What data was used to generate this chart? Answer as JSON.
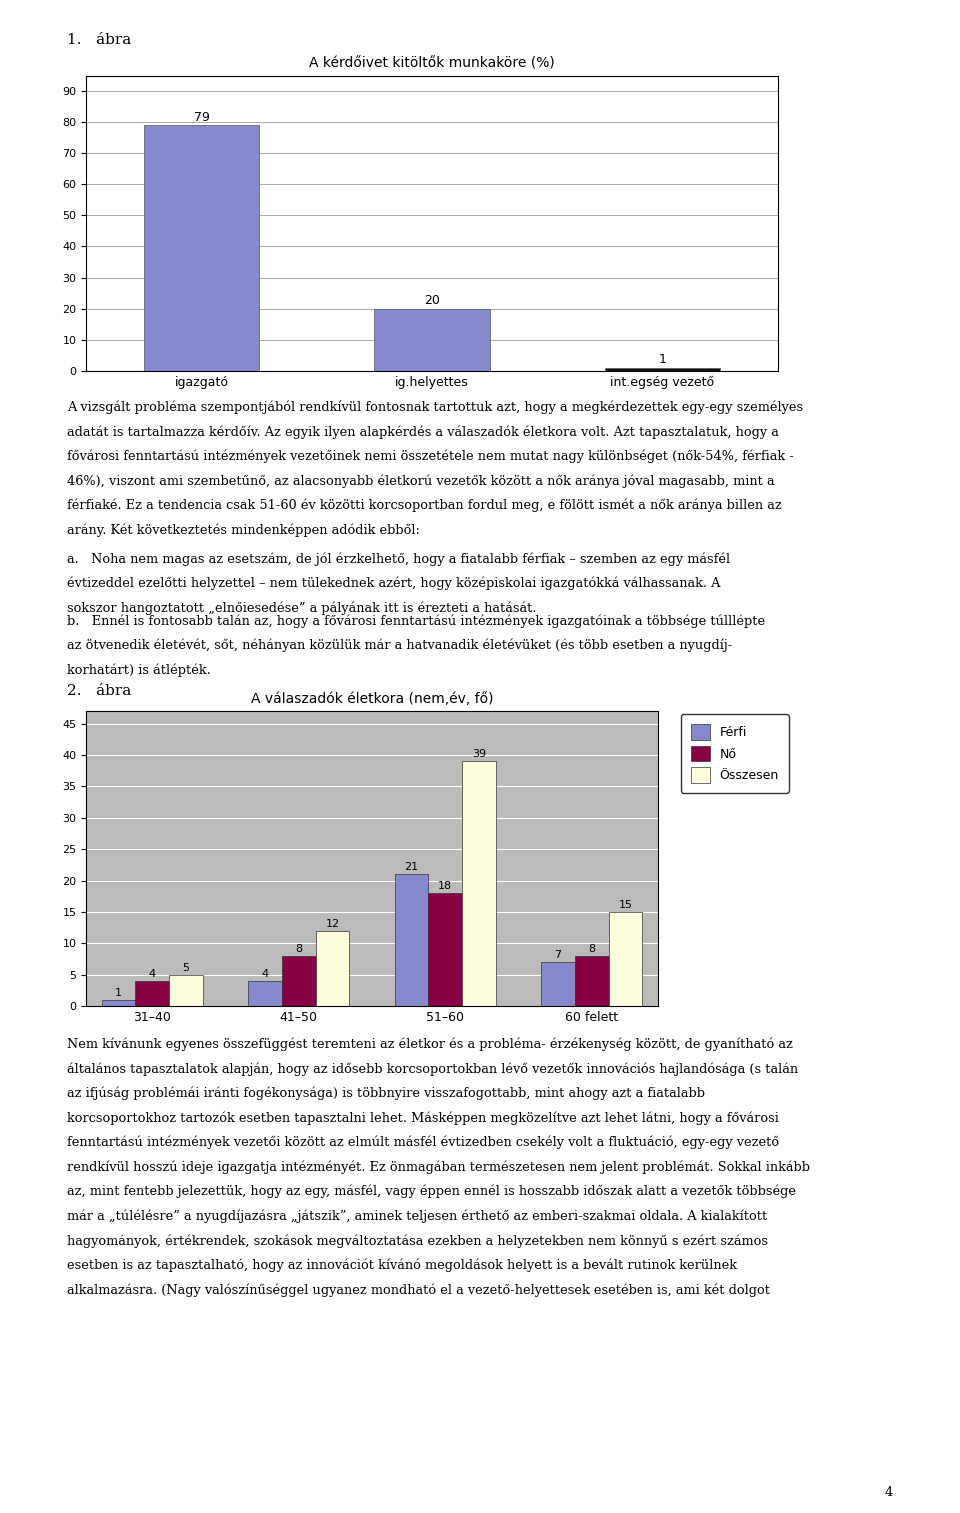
{
  "chart1": {
    "title": "A kérdőivet kitöltők munkaköre (%)",
    "categories": [
      "igazgató",
      "ig.helyettes",
      "int.egség vezető"
    ],
    "values": [
      79,
      20,
      1
    ],
    "bar_color": "#8888cc",
    "bar_color_small": "#111111",
    "yticks": [
      0,
      10,
      20,
      30,
      40,
      50,
      60,
      70,
      80,
      90
    ],
    "ylim": [
      0,
      95
    ]
  },
  "chart2": {
    "title": "A válaszadók életkora (nem,év, fő)",
    "categories": [
      "31–40",
      "41–50",
      "51–60",
      "60 felett"
    ],
    "ferfi": [
      1,
      4,
      21,
      7
    ],
    "no": [
      4,
      8,
      18,
      8
    ],
    "osszesen": [
      5,
      12,
      39,
      15
    ],
    "ferfi_color": "#8888cc",
    "no_color": "#880044",
    "osszesen_color": "#ffffe0",
    "yticks": [
      0,
      5,
      10,
      15,
      20,
      25,
      30,
      35,
      40,
      45
    ],
    "ylim": [
      0,
      47
    ],
    "legend_labels": [
      "Férfi",
      "Nő",
      "Összesen"
    ]
  },
  "page_bg": "#ffffff",
  "text_color": "#000000",
  "label1": "1.   ábra",
  "label2": "2.   ábra",
  "body_text1_lines": [
    "A vizsgált probléma szempontjából rendkívül fontosnak tartottuk azt, hogy a megkérdezettek egy-egy személyes",
    "adatát is tartalmazza kérdőív. Az egyik ilyen alapkérdés a válaszadók életkora volt. Azt tapasztalatuk, hogy a",
    "fővárosi fenntartású intézmények vezetőinek nemi összetétele nem mutat nagy különbséget (nők-54%, férfiak -",
    "46%), viszont ami szembetűnő, az alacsonyabb életkorú vezetők között a nők aránya jóval magasabb, mint a",
    "férfiaké. Ez a tendencia csak 51-60 év közötti korcsoportban fordul meg, e fölött ismét a nők aránya billen az",
    "arány. Két következtetés mindenképpen adódik ebből:"
  ],
  "bullet_a_lines": [
    "a.   Noha nem magas az esetszám, de jól érzkelhető, hogy a fiatalabb férfiak – szemben az egy másfél",
    "évtizeddel ezelőtti helyzettel – nem tülekednek azért, hogy középiskolai igazgatókká válhassanak. A",
    "sokszor hangoztatott „elnőiesedése” a pályának itt is érezteti a hatását."
  ],
  "bullet_b_lines": [
    "b.   Ennél is fontosabb talán az, hogy a fővárosi fenntartású intézmények igazgatóinak a többsége túlllépte",
    "az ötvenedik életévét, sőt, néhányan közülük már a hatvanadik életévüket (és több esetben a nyugdíj-",
    "korhatárt) is átlépték."
  ],
  "body_text2_lines": [
    "Nem kívánunk egyenes összefüggést teremteni az életkor és a probléma- érzékenység között, de gyanítható az",
    "általános tapasztalatok alapján, hogy az idősebb korcsoportokban lévő vezetők innovációs hajlandósága (s talán",
    "az ifjúság problémái iránti fogékonysága) is többnyire visszafogottabb, mint ahogy azt a fiatalabb",
    "korcsoportokhoz tartozók esetben tapasztalni lehet. Másképpen megközelítve azt lehet látni, hogy a fővárosi",
    "fenntartású intézmények vezetői között az elmúlt másfél évtizedben csekély volt a fluktuáció, egy-egy vezető",
    "rendkívül hosszú ideje igazgatja intézményét. Ez önmagában természetesen nem jelent problémát. Sokkal inkább",
    "az, mint fentebb jelezettük, hogy az egy, másfél, vagy éppen ennél is hosszabb időszak alatt a vezetők többsége",
    "már a „túlélésre” a nyugdíjazásra „játszik”, aminek teljesen érthető az emberi-szakmai oldala. A kialakított",
    "hagyományok, értékrendek, szokások megváltoztatása ezekben a helyzetekben nem könnyű s ezért számos",
    "esetben is az tapasztalható, hogy az innovációt kívánó megoldások helyett is a bevált rutinok kerülnek",
    "alkalmazásra. (Nagy valószínűséggel ugyanez mondható el a vezető-helyettesek esetében is, ami két dolgot"
  ],
  "page_number": "4"
}
